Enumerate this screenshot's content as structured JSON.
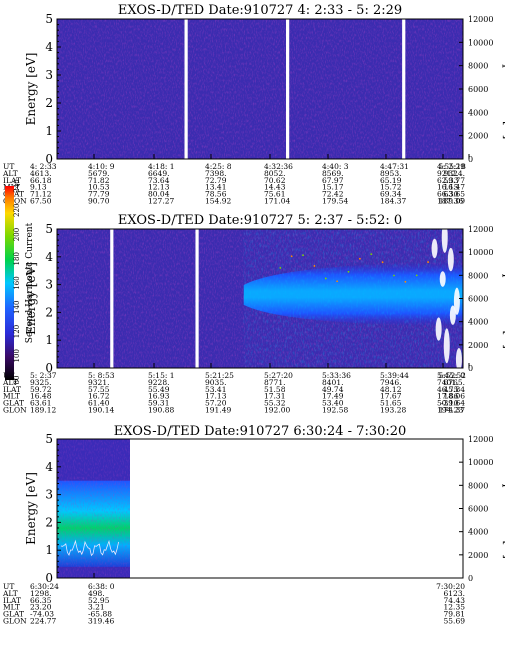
{
  "chart_data": [
    {
      "type": "heatmap",
      "title": "EXOS-D/TED   Date:910727  4: 2:33 - 5: 2:29",
      "ylabel": "Energy [eV]",
      "y2label": "Temperature [K]",
      "ylim": [
        0,
        5
      ],
      "y2lim": [
        0,
        12000
      ],
      "yticks": [
        "0",
        "1",
        "2",
        "3",
        "4",
        "5"
      ],
      "y2ticks": [
        "0",
        "2000",
        "4000",
        "6000",
        "8000",
        "10000",
        "12000"
      ],
      "orbit_rows": [
        "UT",
        "ALT",
        "ILAT",
        "MLT",
        "GLAT",
        "GLON"
      ],
      "orbit_columns": [
        [
          "4: 2:33",
          "4613.",
          "66.18",
          "9.13",
          "71.12",
          "67.50"
        ],
        [
          "4:10: 9",
          "5679.",
          "71.82",
          "10.53",
          "77.79",
          "90.70"
        ],
        [
          "4:18: 1",
          "6649.",
          "73.64",
          "12.13",
          "80.04",
          "127.27"
        ],
        [
          "4:25: 8",
          "7398.",
          "72.79",
          "13.41",
          "78.56",
          "154.92"
        ],
        [
          "4:32:36",
          "8052.",
          "70.62",
          "14.43",
          "75.61",
          "171.04"
        ],
        [
          "4:40: 3",
          "8569.",
          "67.97",
          "15.17",
          "72.42",
          "179.54"
        ],
        [
          "4:47:31",
          "8953.",
          "65.19",
          "15.72",
          "69.34",
          "184.37"
        ],
        [
          "4:55:18",
          "9212.",
          "62.33",
          "16.15",
          "66.30",
          "187.36"
        ],
        [
          "5: 2:29",
          "9324.",
          "59.77",
          "16.47",
          "63.65",
          "189.09"
        ]
      ],
      "data_gaps_fraction": [
        0.318,
        0.568,
        0.854
      ],
      "intensity_level": "background (low, ~40-60)"
    },
    {
      "type": "heatmap",
      "title": "EXOS-D/TED   Date:910727  5: 2:37 - 5:52: 0",
      "ylabel": "Energy [eV]",
      "y2label": "Temperature [K]",
      "ylim": [
        0,
        5
      ],
      "y2lim": [
        0,
        12000
      ],
      "yticks": [
        "0",
        "1",
        "2",
        "3",
        "4",
        "5"
      ],
      "y2ticks": [
        "0",
        "2000",
        "4000",
        "6000",
        "8000",
        "10000",
        "12000"
      ],
      "orbit_rows": [
        "UT",
        "ALT",
        "ILAT",
        "MLT",
        "GLAT",
        "GLON"
      ],
      "orbit_columns": [
        [
          "5: 2:37",
          "9325.",
          "59.72",
          "16.48",
          "63.61",
          "189.12"
        ],
        [
          "5: 8:53",
          "9321.",
          "57.55",
          "16.72",
          "61.40",
          "190.14"
        ],
        [
          "5:15: 1",
          "9228.",
          "55.49",
          "16.93",
          "59.31",
          "190.88"
        ],
        [
          "5:21:25",
          "9035.",
          "53.41",
          "17.13",
          "57.20",
          "191.49"
        ],
        [
          "5:27:20",
          "8771.",
          "51.58",
          "17.31",
          "55.32",
          "192.00"
        ],
        [
          "5:33:36",
          "8401.",
          "49.74",
          "17.49",
          "53.40",
          "192.58"
        ],
        [
          "5:39:44",
          "7946.",
          "48.12",
          "17.67",
          "51.65",
          "193.28"
        ],
        [
          "5:45:52",
          "7401.",
          "46.75",
          "17.86",
          "50.10",
          "194.23"
        ],
        [
          "5:52: 0",
          "6765.",
          "45.84",
          "18.06",
          "-39.64",
          "174.37"
        ]
      ],
      "data_gaps_fraction": [
        0.135,
        0.345
      ],
      "colorbar": {
        "label": "Second Harmonic Current",
        "ticks": [
          "80",
          "100",
          "120",
          "140",
          "160",
          "180",
          "200",
          "220",
          "240"
        ],
        "range": [
          80,
          240
        ]
      },
      "band": {
        "energy_center_eV": 2.6,
        "energy_halfwidth_eV": 1.1,
        "starts_after_UT": "5:27:20"
      }
    },
    {
      "type": "heatmap",
      "title": "EXOS-D/TED   Date:910727  6:30:24 - 7:30:20",
      "ylabel": "Energy [eV]",
      "y2label": "Temperature [K]",
      "ylim": [
        0,
        5
      ],
      "y2lim": [
        0,
        12000
      ],
      "yticks": [
        "0",
        "1",
        "2",
        "3",
        "4",
        "5"
      ],
      "y2ticks": [
        "0",
        "2000",
        "4000",
        "6000",
        "8000",
        "10000",
        "12000"
      ],
      "orbit_rows": [
        "UT",
        "ALT",
        "ILAT",
        "MLT",
        "GLAT",
        "GLON"
      ],
      "orbit_columns": [
        [
          "6:30:24",
          "1298.",
          "66.35",
          "23.20",
          "-74.03",
          "224.77"
        ],
        [
          "6:38: 0",
          "498.",
          "52.95",
          "3.21",
          "-65.88",
          "319.46"
        ],
        [
          "7:30:20",
          "6123.",
          "74.43",
          "12.35",
          "79.81",
          "55.69"
        ]
      ],
      "data_coverage": "6:30:24 - 6:38:0 only"
    }
  ]
}
